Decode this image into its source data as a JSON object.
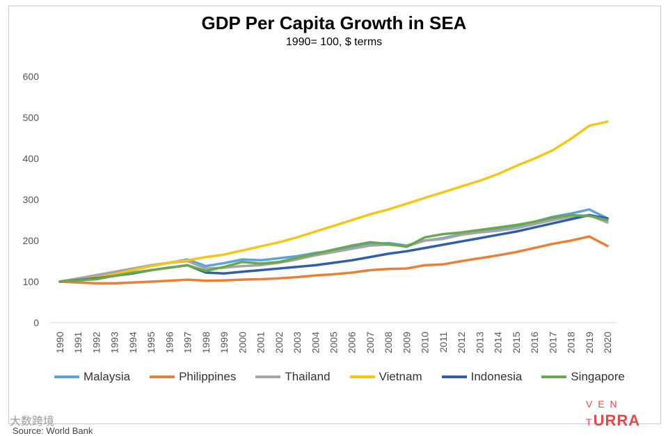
{
  "chart_data": {
    "type": "line",
    "title": "GDP Per Capita Growth in SEA",
    "subtitle": "1990= 100, $ terms",
    "xlabel": "",
    "ylabel": "",
    "ylim": [
      0,
      600
    ],
    "yticks": [
      0,
      100,
      200,
      300,
      400,
      500,
      600
    ],
    "categories": [
      "1990",
      "1991",
      "1992",
      "1993",
      "1994",
      "1995",
      "1996",
      "1997",
      "1998",
      "1999",
      "2000",
      "2001",
      "2002",
      "2003",
      "2004",
      "2005",
      "2006",
      "2007",
      "2008",
      "2009",
      "2010",
      "2011",
      "2012",
      "2013",
      "2014",
      "2015",
      "2016",
      "2017",
      "2018",
      "2019",
      "2020"
    ],
    "grid": false,
    "legend_position": "bottom",
    "series": [
      {
        "name": "Malaysia",
        "color": "#5ba3d9",
        "values": [
          100,
          106,
          114,
          122,
          130,
          138,
          146,
          154,
          138,
          145,
          154,
          152,
          157,
          162,
          170,
          176,
          184,
          190,
          194,
          188,
          200,
          206,
          216,
          222,
          228,
          236,
          246,
          258,
          266,
          276,
          254
        ]
      },
      {
        "name": "Philippines",
        "color": "#e8803a",
        "values": [
          100,
          98,
          96,
          96,
          98,
          100,
          102,
          105,
          102,
          103,
          105,
          106,
          108,
          111,
          115,
          118,
          122,
          128,
          131,
          132,
          140,
          142,
          150,
          157,
          164,
          172,
          182,
          192,
          200,
          210,
          187
        ]
      },
      {
        "name": "Thailand",
        "color": "#a5a5a5",
        "values": [
          100,
          108,
          116,
          124,
          132,
          140,
          146,
          150,
          132,
          134,
          138,
          140,
          146,
          154,
          164,
          172,
          180,
          188,
          190,
          186,
          200,
          204,
          214,
          220,
          224,
          230,
          240,
          250,
          258,
          262,
          244
        ]
      },
      {
        "name": "Vietnam",
        "color": "#f5c518",
        "values": [
          100,
          104,
          110,
          118,
          128,
          138,
          146,
          152,
          160,
          166,
          176,
          186,
          196,
          208,
          222,
          236,
          250,
          264,
          276,
          290,
          304,
          318,
          332,
          346,
          362,
          382,
          400,
          420,
          448,
          480,
          490
        ]
      },
      {
        "name": "Indonesia",
        "color": "#2e5fa8",
        "values": [
          100,
          104,
          108,
          114,
          120,
          128,
          134,
          140,
          122,
          120,
          124,
          128,
          132,
          136,
          140,
          146,
          152,
          160,
          168,
          174,
          182,
          190,
          198,
          206,
          214,
          222,
          232,
          242,
          252,
          262,
          254
        ]
      },
      {
        "name": "Singapore",
        "color": "#6aa84f",
        "values": [
          100,
          103,
          106,
          114,
          122,
          128,
          134,
          140,
          126,
          136,
          148,
          144,
          148,
          158,
          168,
          178,
          188,
          196,
          192,
          185,
          208,
          216,
          220,
          226,
          232,
          238,
          246,
          256,
          262,
          260,
          250
        ]
      }
    ]
  },
  "brand": {
    "main": "VENTURRA",
    "prefix": "V E N T",
    "suffix": "URRA"
  },
  "watermark": "大数跨境",
  "source": "Source: World Bank"
}
